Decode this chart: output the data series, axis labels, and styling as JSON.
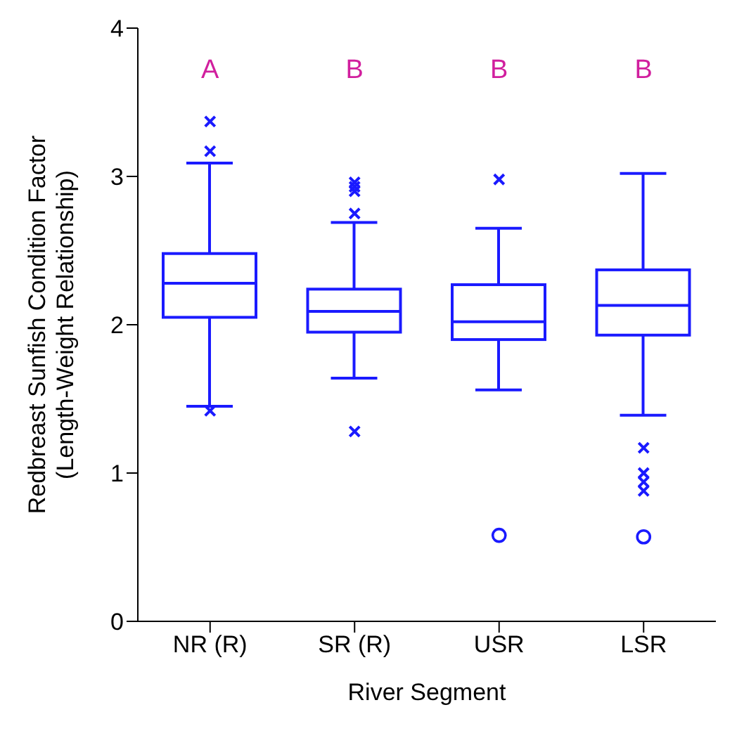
{
  "chart_data": {
    "type": "box",
    "xlabel": "River Segment",
    "ylabel": "Redbreast Sunfish Condition Factor (Length-Weight Relationship)",
    "categories": [
      "NR (R)",
      "SR (R)",
      "USR",
      "LSR"
    ],
    "ylim": [
      0,
      4
    ],
    "yticks": [
      0,
      1,
      2,
      3,
      4
    ],
    "grid": false,
    "legend": false,
    "marker": "cross",
    "series": [
      {
        "color": "#1a1aff",
        "boxes": [
          {
            "low": 1.45,
            "q1": 2.05,
            "median": 2.28,
            "q3": 2.48,
            "high": 3.09,
            "outliers": [
              3.37,
              3.17,
              1.42
            ]
          },
          {
            "low": 1.64,
            "q1": 1.95,
            "median": 2.09,
            "q3": 2.24,
            "high": 2.69,
            "outliers": [
              2.96,
              2.93,
              2.9,
              2.75,
              1.28
            ]
          },
          {
            "low": 1.56,
            "q1": 1.9,
            "median": 2.02,
            "q3": 2.27,
            "high": 2.65,
            "outliers": [
              2.98
            ]
          },
          {
            "low": 1.39,
            "q1": 1.93,
            "median": 2.13,
            "q3": 2.37,
            "high": 3.02,
            "outliers": [
              1.17,
              1.0,
              0.94,
              0.88
            ]
          }
        ]
      },
      {
        "type": "scatter",
        "marker": "circle",
        "color": "#1a1aff",
        "x": [
          "USR",
          "LSR"
        ],
        "values": [
          0.58,
          0.57
        ]
      }
    ],
    "annotations": [
      "A",
      "B",
      "B",
      "B"
    ]
  }
}
